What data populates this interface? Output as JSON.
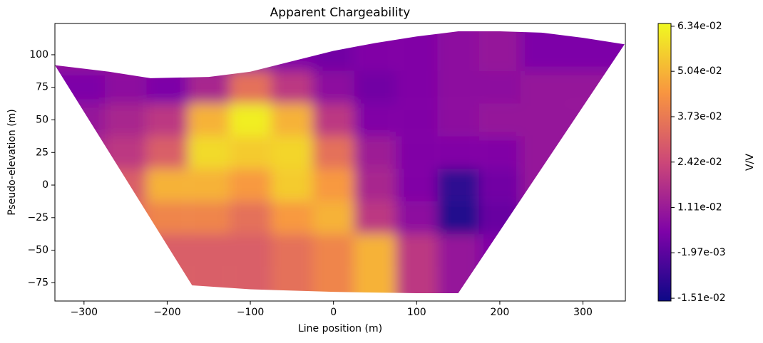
{
  "chart_data": {
    "type": "contour",
    "title": "Apparent Chargeability",
    "x_label": "Line position (m)",
    "y_label": "Pseudo-elevation (m)",
    "colorbar_label": "V/V",
    "xlim": [
      -335,
      351
    ],
    "ylim": [
      -89,
      124
    ],
    "xticks": [
      {
        "value": -300,
        "label": "−300"
      },
      {
        "value": -200,
        "label": "−200"
      },
      {
        "value": -100,
        "label": "−100"
      },
      0,
      100,
      200,
      300
    ],
    "yticks": [
      {
        "value": -75,
        "label": "−75"
      },
      {
        "value": -50,
        "label": "−50"
      },
      {
        "value": -25,
        "label": "−25"
      },
      0,
      25,
      50,
      75,
      100
    ],
    "zlim": [
      -0.0159,
      0.0642
    ],
    "zticks": [
      {
        "value": -0.0151,
        "label": "-1.51e-02"
      },
      {
        "value": -0.00197,
        "label": "-1.97e-03"
      },
      {
        "value": 0.0111,
        "label": "1.11e-02"
      },
      {
        "value": 0.0242,
        "label": "2.42e-02"
      },
      {
        "value": 0.0373,
        "label": "3.73e-02"
      },
      {
        "value": 0.0504,
        "label": "5.04e-02"
      },
      {
        "value": 0.0634,
        "label": "6.34e-02"
      }
    ],
    "colormap": [
      "#0d0887",
      "#7e03a8",
      "#cc4778",
      "#f89540",
      "#f0f921"
    ],
    "x": [
      -300,
      -250,
      -200,
      -150,
      -100,
      -50,
      0,
      50,
      100,
      150,
      200,
      250,
      300
    ],
    "y": [
      100,
      75,
      50,
      25,
      0,
      -25,
      -50,
      -75
    ],
    "z": [
      [
        0.01,
        0.01,
        0.01,
        0.008,
        0.008,
        0.005,
        0.002,
        0.005,
        0.005,
        0.008,
        0.01,
        0.008,
        0.004
      ],
      [
        0.004,
        0.008,
        0.004,
        0.015,
        0.035,
        0.02,
        0.008,
        0.002,
        0.005,
        0.008,
        0.008,
        0.01,
        0.01
      ],
      [
        0.01,
        0.015,
        0.02,
        0.05,
        0.062,
        0.05,
        0.02,
        0.005,
        0.005,
        0.008,
        0.01,
        0.005,
        0.01
      ],
      [
        0.015,
        0.02,
        0.03,
        0.058,
        0.055,
        0.057,
        0.035,
        0.012,
        0.005,
        0.005,
        0.005,
        0.015,
        0.01
      ],
      [
        0.02,
        0.03,
        0.05,
        0.05,
        0.045,
        0.055,
        0.045,
        0.015,
        0.005,
        -0.01,
        0.002,
        0.01,
        0.01
      ],
      [
        0.03,
        0.035,
        0.04,
        0.04,
        0.035,
        0.045,
        0.05,
        0.02,
        0.008,
        -0.012,
        0.0,
        0.01,
        0.01
      ],
      [
        0.03,
        0.03,
        0.035,
        0.035,
        0.03,
        0.04,
        0.05,
        0.045,
        0.015,
        0.005,
        -0.005,
        0.01,
        0.01
      ],
      [
        0.03,
        0.03,
        0.03,
        0.03,
        0.03,
        0.035,
        0.04,
        0.05,
        0.02,
        0.01,
        0.005,
        0.01,
        0.01
      ]
    ],
    "boundary": {
      "x": [
        -335,
        -270,
        -220,
        -150,
        -100,
        -50,
        0,
        50,
        100,
        150,
        200,
        250,
        300,
        350,
        150,
        100,
        0,
        -100,
        -170
      ],
      "y": [
        92,
        87,
        82,
        83,
        87,
        95,
        103,
        109,
        114,
        118,
        118,
        117,
        113,
        108,
        -83,
        -83,
        -82,
        -80,
        -77
      ]
    }
  }
}
